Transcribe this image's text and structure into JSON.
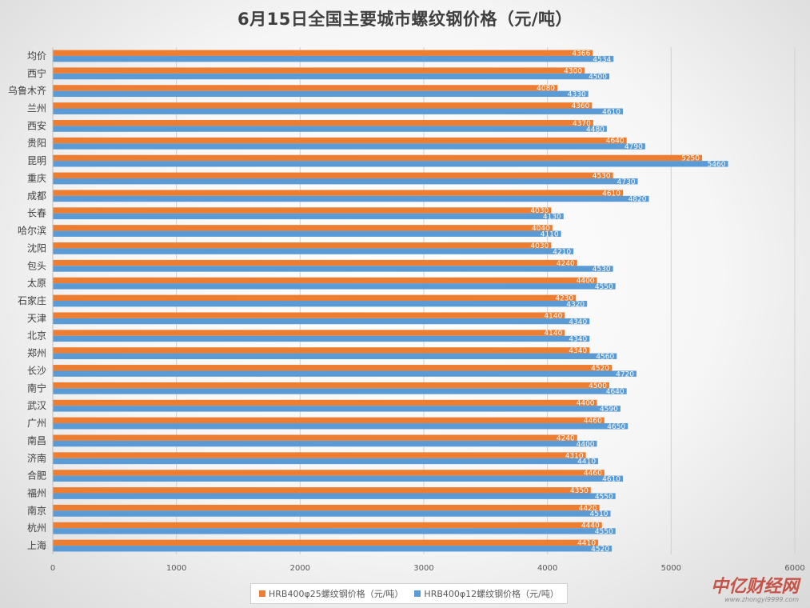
{
  "chart_data": {
    "type": "bar",
    "orientation": "horizontal",
    "title": "6月15日全国主要城市螺纹钢价格（元/吨）",
    "categories": [
      "均价",
      "西宁",
      "乌鲁木齐",
      "兰州",
      "西安",
      "贵阳",
      "昆明",
      "重庆",
      "成都",
      "长春",
      "哈尔滨",
      "沈阳",
      "包头",
      "太原",
      "石家庄",
      "天津",
      "北京",
      "郑州",
      "长沙",
      "南宁",
      "武汉",
      "广州",
      "南昌",
      "济南",
      "合肥",
      "福州",
      "南京",
      "杭州",
      "上海"
    ],
    "series": [
      {
        "name": "HRB400φ25螺纹钢价格（元/吨）",
        "color": "#ed7d31",
        "values": [
          4366,
          4300,
          4080,
          4360,
          4370,
          4640,
          5250,
          4530,
          4610,
          4030,
          4040,
          4030,
          4240,
          4400,
          4230,
          4140,
          4140,
          4340,
          4520,
          4500,
          4400,
          4460,
          4240,
          4310,
          4460,
          4350,
          4420,
          4440,
          4410
        ]
      },
      {
        "name": "HRB400φ12螺纹钢价格（元/吨）",
        "color": "#5b9bd5",
        "values": [
          4534,
          4500,
          4330,
          4610,
          4480,
          4790,
          5460,
          4730,
          4820,
          4130,
          4110,
          4210,
          4530,
          4550,
          4320,
          4340,
          4340,
          4560,
          4720,
          4640,
          4590,
          4650,
          4400,
          4410,
          4610,
          4550,
          4510,
          4550,
          4520
        ]
      }
    ],
    "xlim": [
      0,
      6000
    ],
    "xticks": [
      0,
      1000,
      2000,
      3000,
      4000,
      5000,
      6000
    ],
    "grid": true,
    "legend": "bottom"
  },
  "watermark": {
    "brand": "中亿财经网",
    "url": "www.zhongyi9999.com"
  }
}
